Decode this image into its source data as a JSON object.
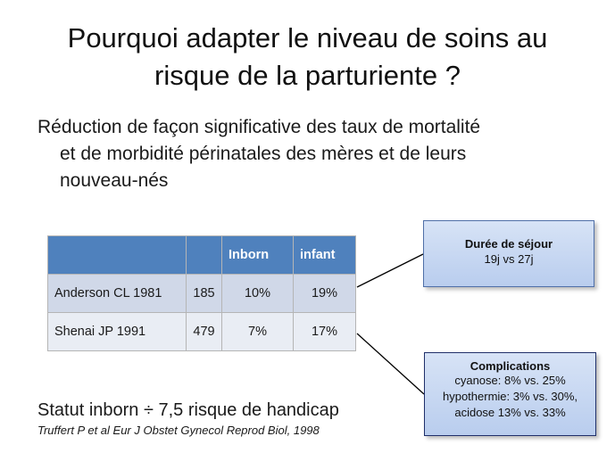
{
  "title": {
    "line1": "Pourquoi adapter le niveau de soins au",
    "line2": "risque de la parturiente ?"
  },
  "bullet": {
    "line1": "Réduction de façon significative des taux de mortalité",
    "line2": "et de morbidité périnatales des mères et de leurs",
    "line3": "nouveau-nés"
  },
  "table": {
    "headers": [
      "",
      "",
      "Inborn",
      "infant"
    ],
    "rows": [
      [
        "Anderson CL 1981",
        "185",
        "10%",
        "19%"
      ],
      [
        "Shenai JP 1991",
        "479",
        "7%",
        "17%"
      ]
    ]
  },
  "box_sejour": {
    "heading": "Durée de séjour",
    "text": "19j vs 27j"
  },
  "box_complications": {
    "heading": "Complications",
    "lines": [
      "cyanose: 8% vs. 25%",
      "hypothermie: 3% vs. 30%,",
      "acidose 13% vs. 33%"
    ]
  },
  "statut": "Statut inborn ÷ 7,5 risque de handicap",
  "reference": "Truffert P et al Eur J Obstet Gynecol Reprod Biol, 1998",
  "colors": {
    "header": "#4f81bd",
    "row_dark": "#d0d8e8",
    "row_light": "#e9edf4",
    "box_fill": "#c6d6f1"
  }
}
